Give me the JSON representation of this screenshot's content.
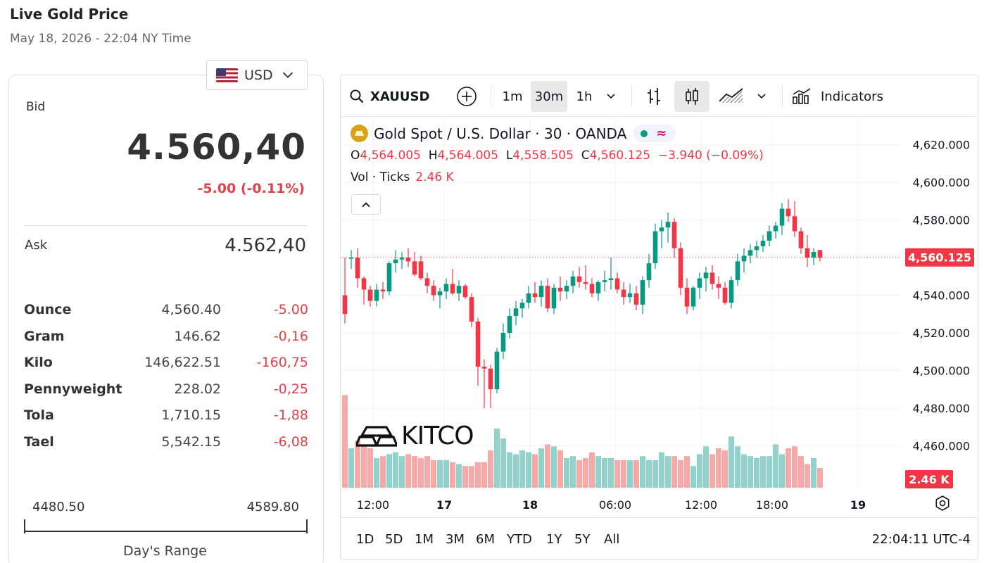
{
  "page": {
    "title": "Live Gold Price",
    "timestamp": "May 18, 2026 - 22:04 NY Time"
  },
  "currency": {
    "selected": "USD",
    "flag_icon": "us-flag-icon"
  },
  "price": {
    "bid_label": "Bid",
    "bid": "4.560,40",
    "change": "-5.00 (-0.11%)",
    "ask_label": "Ask",
    "ask": "4.562,40"
  },
  "units": [
    {
      "name": "Ounce",
      "value": "4,560.40",
      "change": "-5.00"
    },
    {
      "name": "Gram",
      "value": "146.62",
      "change": "-0,16"
    },
    {
      "name": "Kilo",
      "value": "146,622.51",
      "change": "-160,75"
    },
    {
      "name": "Pennyweight",
      "value": "228.02",
      "change": "-0,25"
    },
    {
      "name": "Tola",
      "value": "1,710.15",
      "change": "-1,88"
    },
    {
      "name": "Tael",
      "value": "5,542.15",
      "change": "-6,08"
    }
  ],
  "day_range": {
    "low": "4480.50",
    "high": "4589.80",
    "label": "Day's Range"
  },
  "toolbar": {
    "symbol": "XAUUSD",
    "intervals": [
      "1m",
      "30m",
      "1h"
    ],
    "active_interval": "30m",
    "indicators_label": "Indicators"
  },
  "legend": {
    "title": "Gold Spot  /  U.S. Dollar · 30 · OANDA",
    "o_label": "O",
    "o": "4,564.005",
    "h_label": "H",
    "h": "4,564.005",
    "l_label": "L",
    "l": "4,558.505",
    "c_label": "C",
    "c": "4,560.125",
    "change": "−3.940 (−0.09%)",
    "vol_label": "Vol · Ticks",
    "vol": "2.46 K"
  },
  "watermark": {
    "text": "KITCO"
  },
  "chart_data": {
    "type": "candlestick",
    "y_ticks": [
      "4,620.000",
      "4,600.000",
      "4,580.000",
      "4,560.000",
      "4,540.000",
      "4,520.000",
      "4,500.000",
      "4,480.000",
      "4,460.000"
    ],
    "ylim": [
      4456,
      4624
    ],
    "x_ticks": [
      "12:00",
      "17",
      "18",
      "06:00",
      "12:00",
      "18:00",
      "19"
    ],
    "last_price_label": "4,560.125",
    "last_price": 4560.125,
    "last_volume_label": "2.46 K",
    "colors": {
      "up": "#089981",
      "down": "#f23645",
      "vol_up": "#92d2cc",
      "vol_down": "#f7a9a7"
    },
    "candles": [
      [
        4540,
        4560,
        4525,
        4530
      ],
      [
        4560,
        4564,
        4554,
        4560
      ],
      [
        4560,
        4565,
        4544,
        4549
      ],
      [
        4549,
        4550,
        4535,
        4543
      ],
      [
        4543,
        4545,
        4534,
        4537
      ],
      [
        4537,
        4546,
        4534,
        4543
      ],
      [
        4543,
        4547,
        4538,
        4542
      ],
      [
        4542,
        4558,
        4540,
        4557
      ],
      [
        4557,
        4564,
        4552,
        4559
      ],
      [
        4559,
        4563,
        4554,
        4560
      ],
      [
        4560,
        4565,
        4555,
        4558
      ],
      [
        4558,
        4563,
        4550,
        4551
      ],
      [
        4558,
        4561,
        4548,
        4549
      ],
      [
        4549,
        4552,
        4541,
        4545
      ],
      [
        4545,
        4548,
        4537,
        4540
      ],
      [
        4540,
        4544,
        4533,
        4542
      ],
      [
        4542,
        4549,
        4538,
        4546
      ],
      [
        4546,
        4554,
        4540,
        4541
      ],
      [
        4541,
        4548,
        4537,
        4545
      ],
      [
        4545,
        4546,
        4538,
        4539
      ],
      [
        4539,
        4541,
        4523,
        4526
      ],
      [
        4526,
        4528,
        4492,
        4502
      ],
      [
        4502,
        4506,
        4480,
        4501
      ],
      [
        4501,
        4503,
        4480,
        4490
      ],
      [
        4490,
        4512,
        4488,
        4510
      ],
      [
        4510,
        4525,
        4506,
        4520
      ],
      [
        4520,
        4533,
        4517,
        4529
      ],
      [
        4529,
        4537,
        4524,
        4533
      ],
      [
        4533,
        4538,
        4528,
        4536
      ],
      [
        4536,
        4545,
        4533,
        4541
      ],
      [
        4541,
        4547,
        4536,
        4539
      ],
      [
        4539,
        4548,
        4534,
        4545
      ],
      [
        4545,
        4549,
        4531,
        4533
      ],
      [
        4533,
        4546,
        4530,
        4544
      ],
      [
        4544,
        4550,
        4537,
        4542
      ],
      [
        4542,
        4548,
        4538,
        4545
      ],
      [
        4545,
        4553,
        4541,
        4550
      ],
      [
        4550,
        4555,
        4544,
        4547
      ],
      [
        4547,
        4556,
        4543,
        4546
      ],
      [
        4546,
        4549,
        4539,
        4541
      ],
      [
        4541,
        4548,
        4537,
        4547
      ],
      [
        4547,
        4553,
        4542,
        4548
      ],
      [
        4548,
        4560,
        4543,
        4549
      ],
      [
        4549,
        4552,
        4541,
        4543
      ],
      [
        4543,
        4547,
        4535,
        4539
      ],
      [
        4539,
        4546,
        4536,
        4541
      ],
      [
        4541,
        4545,
        4532,
        4535
      ],
      [
        4535,
        4550,
        4530,
        4548
      ],
      [
        4548,
        4562,
        4544,
        4557
      ],
      [
        4557,
        4578,
        4554,
        4574
      ],
      [
        4574,
        4580,
        4565,
        4576
      ],
      [
        4576,
        4584,
        4568,
        4579
      ],
      [
        4579,
        4581,
        4560,
        4565
      ],
      [
        4565,
        4568,
        4540,
        4544
      ],
      [
        4544,
        4549,
        4530,
        4534
      ],
      [
        4534,
        4545,
        4532,
        4544
      ],
      [
        4544,
        4552,
        4538,
        4549
      ],
      [
        4549,
        4555,
        4542,
        4552
      ],
      [
        4552,
        4556,
        4543,
        4546
      ],
      [
        4546,
        4550,
        4538,
        4544
      ],
      [
        4544,
        4547,
        4535,
        4536
      ],
      [
        4536,
        4550,
        4533,
        4548
      ],
      [
        4548,
        4562,
        4545,
        4558
      ],
      [
        4558,
        4565,
        4552,
        4561
      ],
      [
        4561,
        4567,
        4557,
        4564
      ],
      [
        4564,
        4569,
        4560,
        4566
      ],
      [
        4566,
        4572,
        4563,
        4569
      ],
      [
        4569,
        4577,
        4566,
        4574
      ],
      [
        4574,
        4579,
        4570,
        4577
      ],
      [
        4577,
        4589,
        4572,
        4586
      ],
      [
        4586,
        4591,
        4579,
        4582
      ],
      [
        4582,
        4590,
        4571,
        4574
      ],
      [
        4574,
        4576,
        4562,
        4565
      ],
      [
        4565,
        4572,
        4555,
        4560
      ],
      [
        4560,
        4565,
        4556,
        4563
      ],
      [
        4564,
        4564,
        4558,
        4560
      ]
    ],
    "volumes": [
      47,
      20,
      24,
      22,
      20,
      15,
      16,
      17,
      18,
      16,
      17,
      16,
      15,
      16,
      14,
      14,
      14,
      13,
      12,
      11,
      11,
      13,
      13,
      19,
      30,
      25,
      18,
      17,
      19,
      18,
      17,
      20,
      22,
      21,
      19,
      15,
      16,
      14,
      15,
      18,
      16,
      15,
      15,
      14,
      14,
      14,
      14,
      16,
      14,
      14,
      18,
      16,
      16,
      14,
      16,
      11,
      17,
      21,
      17,
      20,
      19,
      26,
      21,
      17,
      16,
      15,
      16,
      16,
      22,
      17,
      20,
      21,
      16,
      12,
      15,
      10
    ]
  },
  "bottom": {
    "ranges": [
      "1D",
      "5D",
      "1M",
      "3M",
      "6M",
      "YTD",
      "1Y",
      "5Y",
      "All"
    ],
    "clock": "22:04:11 UTC-4"
  }
}
